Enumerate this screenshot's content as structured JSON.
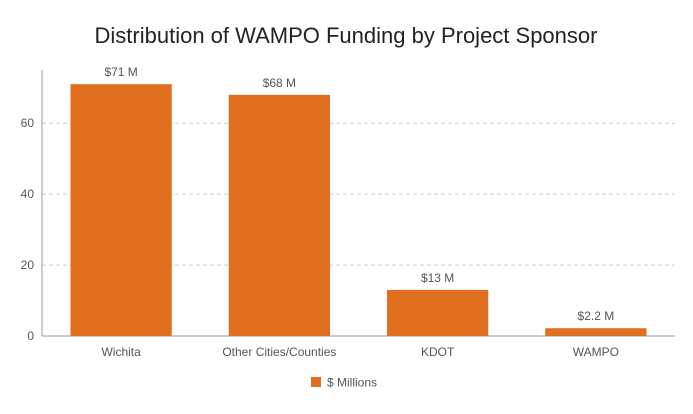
{
  "chart_data": {
    "type": "bar",
    "title": "Distribution of WAMPO Funding by Project Sponsor",
    "categories": [
      "Wichita",
      "Other Cities/Counties",
      "KDOT",
      "WAMPO"
    ],
    "series": [
      {
        "name": "$ Millions",
        "values": [
          71,
          68,
          13,
          2.2
        ],
        "data_labels": [
          "$71 M",
          "$68 M",
          "$13 M",
          "$2.2 M"
        ]
      }
    ],
    "xlabel": "",
    "ylabel": "",
    "ylim": [
      0,
      75
    ],
    "yticks": [
      "0",
      "20",
      "40",
      "60"
    ],
    "ytick_values": [
      0,
      20,
      40,
      60
    ],
    "grid": true,
    "legend_position": "bottom-center",
    "colors": {
      "bar": "#E07020",
      "text": "#555555",
      "title": "#222222",
      "grid": "#cccccc",
      "axis": "#999999"
    }
  }
}
